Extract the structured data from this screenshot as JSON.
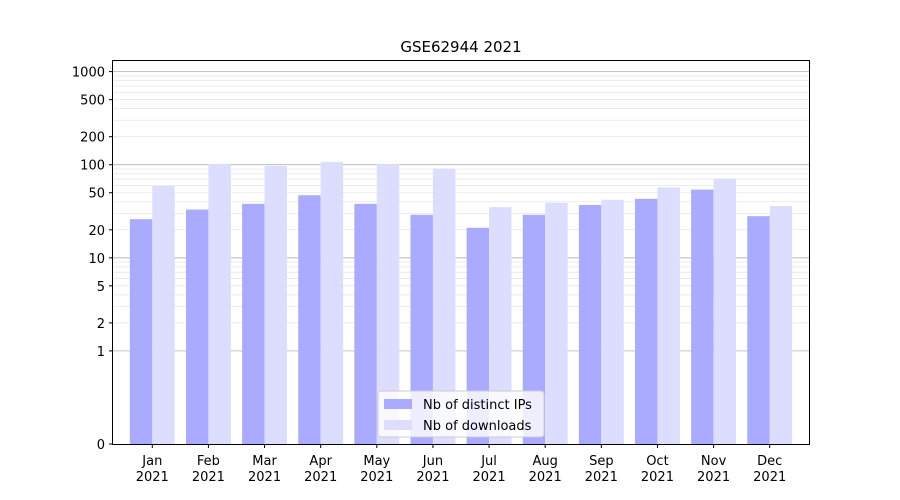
{
  "chart_data": {
    "type": "bar",
    "title": "GSE62944 2021",
    "xlabel": "",
    "ylabel": "",
    "yscale": "symlog",
    "ylim": [
      0,
      1300
    ],
    "yticks": [
      0,
      1,
      2,
      5,
      10,
      20,
      50,
      100,
      200,
      500,
      1000
    ],
    "categories": [
      "Jan\n2021",
      "Feb\n2021",
      "Mar\n2021",
      "Apr\n2021",
      "May\n2021",
      "Jun\n2021",
      "Jul\n2021",
      "Aug\n2021",
      "Sep\n2021",
      "Oct\n2021",
      "Nov\n2021",
      "Dec\n2021"
    ],
    "series": [
      {
        "name": "Nb of distinct IPs",
        "color": "#aaaaff",
        "values": [
          26,
          33,
          38,
          47,
          38,
          29,
          21,
          29,
          37,
          43,
          54,
          28
        ]
      },
      {
        "name": "Nb of downloads",
        "color": "#ddddff",
        "values": [
          59,
          102,
          97,
          107,
          101,
          91,
          35,
          39,
          42,
          57,
          71,
          36
        ]
      }
    ],
    "grid": true,
    "legend_position": "bottom-center"
  }
}
